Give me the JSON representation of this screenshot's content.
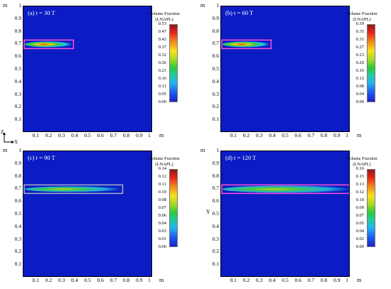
{
  "panels": [
    {
      "label": "(a) t = 30 T",
      "legend_title_1": "Volume Fraction",
      "legend_title_2": "(LNAPL)",
      "ticks": [
        "0.53",
        "0.47",
        "0.42",
        "0.37",
        "0.32",
        "0.26",
        "0.21",
        "0.16",
        "0.11",
        "0.05",
        "0.00"
      ],
      "plume_extent": 0.37,
      "y_axis_label": ""
    },
    {
      "label": "(b) t = 60 T",
      "legend_title_1": "Volume Fraction",
      "legend_title_2": "(LNAPL)",
      "ticks": [
        "0.39",
        "0.35",
        "0.31",
        "0.27",
        "0.23",
        "0.20",
        "0.16",
        "0.12",
        "0.08",
        "0.04",
        "0.00"
      ],
      "plume_extent": 0.37,
      "y_axis_label": ""
    },
    {
      "label": "(c) t = 90 T",
      "legend_title_1": "Volume Fraction",
      "legend_title_2": "(LNAPL)",
      "ticks": [
        "0.14",
        "0.12",
        "0.11",
        "0.10",
        "0.08",
        "0.07",
        "0.06",
        "0.04",
        "0.03",
        "0.01",
        "0.00"
      ],
      "plume_extent": 0.75,
      "y_axis_label": ""
    },
    {
      "label": "(d) t = 120 T",
      "legend_title_1": "Volume Fraction",
      "legend_title_2": "(LNAPL)",
      "ticks": [
        "0.16",
        "0.15",
        "0.13",
        "0.12",
        "0.10",
        "0.09",
        "0.07",
        "0.05",
        "0.04",
        "0.02",
        "0.00"
      ],
      "plume_extent": 1.0,
      "y_axis_label": "Y"
    }
  ],
  "axis": {
    "y_ticks": [
      "1",
      "0.9",
      "0.8",
      "0.7",
      "0.6",
      "0.5",
      "0.4",
      "0.3",
      "0.2",
      "0.1"
    ],
    "x_ticks": [
      "0.1",
      "0.2",
      "0.3",
      "0.4",
      "0.5",
      "0.6",
      "0.7",
      "0.8",
      "0.9",
      "1"
    ],
    "unit": "m"
  },
  "orientation": {
    "z": "Z",
    "x": "X"
  },
  "colors": {
    "background": "#0b1cc4",
    "box_pink": "#ff4fd8",
    "box_gray": "#a8b0c8"
  }
}
